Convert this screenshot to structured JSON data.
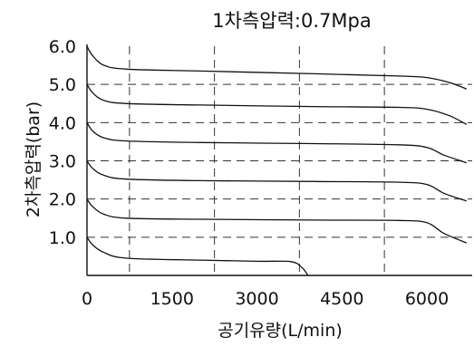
{
  "chart_data": {
    "type": "line",
    "title": "1차측압력:0.7Mpa",
    "xlabel": "공기유량(L/min)",
    "ylabel": "2차측압력(bar)",
    "xlim": [
      0,
      6800
    ],
    "ylim": [
      0,
      6.0
    ],
    "x_ticks": [
      0,
      1500,
      3000,
      4500,
      6000
    ],
    "x_tick_labels": [
      "0",
      "1500",
      "3000",
      "4500",
      "6000"
    ],
    "y_ticks": [
      1.0,
      2.0,
      3.0,
      4.0,
      5.0,
      6.0
    ],
    "y_tick_labels": [
      "1.0",
      "2.0",
      "3.0",
      "4.0",
      "5.0",
      "6.0"
    ],
    "x_grid": [
      750,
      2250,
      3750,
      5250
    ],
    "y_grid": [
      1.0,
      2.0,
      3.0,
      4.0,
      5.0
    ],
    "grid": true,
    "legend": "none",
    "series": [
      {
        "points": [
          [
            0,
            6.0
          ],
          [
            100,
            5.75
          ],
          [
            300,
            5.5
          ],
          [
            700,
            5.4
          ],
          [
            2000,
            5.35
          ],
          [
            4000,
            5.28
          ],
          [
            5500,
            5.22
          ],
          [
            6000,
            5.18
          ],
          [
            6400,
            5.05
          ],
          [
            6700,
            4.88
          ]
        ]
      },
      {
        "points": [
          [
            0,
            5.0
          ],
          [
            100,
            4.78
          ],
          [
            300,
            4.58
          ],
          [
            700,
            4.5
          ],
          [
            2000,
            4.46
          ],
          [
            4000,
            4.42
          ],
          [
            5500,
            4.4
          ],
          [
            6000,
            4.35
          ],
          [
            6400,
            4.18
          ],
          [
            6700,
            3.95
          ]
        ]
      },
      {
        "points": [
          [
            0,
            4.0
          ],
          [
            100,
            3.78
          ],
          [
            300,
            3.6
          ],
          [
            700,
            3.52
          ],
          [
            2000,
            3.48
          ],
          [
            4000,
            3.45
          ],
          [
            5500,
            3.42
          ],
          [
            6000,
            3.35
          ],
          [
            6300,
            3.15
          ],
          [
            6700,
            2.95
          ]
        ]
      },
      {
        "points": [
          [
            0,
            3.0
          ],
          [
            100,
            2.8
          ],
          [
            300,
            2.62
          ],
          [
            700,
            2.52
          ],
          [
            2000,
            2.48
          ],
          [
            4000,
            2.46
          ],
          [
            5500,
            2.44
          ],
          [
            6000,
            2.38
          ],
          [
            6300,
            2.15
          ],
          [
            6700,
            1.95
          ]
        ]
      },
      {
        "points": [
          [
            0,
            2.0
          ],
          [
            100,
            1.8
          ],
          [
            300,
            1.6
          ],
          [
            700,
            1.5
          ],
          [
            2000,
            1.47
          ],
          [
            4000,
            1.45
          ],
          [
            5500,
            1.44
          ],
          [
            6000,
            1.38
          ],
          [
            6300,
            1.1
          ],
          [
            6700,
            0.85
          ]
        ]
      },
      {
        "points": [
          [
            0,
            1.0
          ],
          [
            100,
            0.8
          ],
          [
            300,
            0.6
          ],
          [
            700,
            0.45
          ],
          [
            2000,
            0.4
          ],
          [
            3000,
            0.37
          ],
          [
            3600,
            0.36
          ],
          [
            3800,
            0.2
          ],
          [
            3900,
            0.0
          ]
        ]
      }
    ]
  }
}
